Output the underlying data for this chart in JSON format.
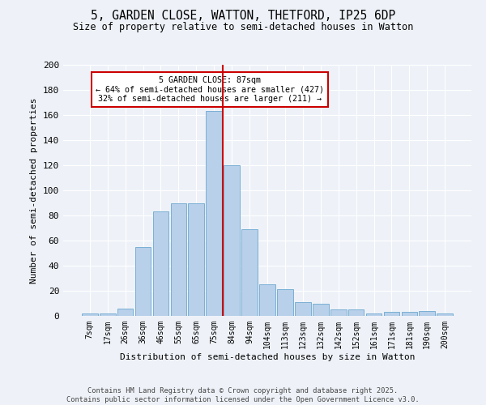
{
  "title": "5, GARDEN CLOSE, WATTON, THETFORD, IP25 6DP",
  "subtitle": "Size of property relative to semi-detached houses in Watton",
  "xlabel": "Distribution of semi-detached houses by size in Watton",
  "ylabel": "Number of semi-detached properties",
  "categories": [
    "7sqm",
    "17sqm",
    "26sqm",
    "36sqm",
    "46sqm",
    "55sqm",
    "65sqm",
    "75sqm",
    "84sqm",
    "94sqm",
    "104sqm",
    "113sqm",
    "123sqm",
    "132sqm",
    "142sqm",
    "152sqm",
    "161sqm",
    "171sqm",
    "181sqm",
    "190sqm",
    "200sqm"
  ],
  "values": [
    2,
    2,
    6,
    55,
    83,
    90,
    90,
    163,
    120,
    69,
    25,
    21,
    11,
    10,
    5,
    5,
    2,
    3,
    3,
    4,
    2
  ],
  "bar_color": "#b8d0ea",
  "bar_edge_color": "#7aafd4",
  "vline_x": 7.5,
  "vline_color": "#cc0000",
  "annotation_title": "5 GARDEN CLOSE: 87sqm",
  "annotation_line1": "← 64% of semi-detached houses are smaller (427)",
  "annotation_line2": "32% of semi-detached houses are larger (211) →",
  "annotation_box_color": "#cc0000",
  "ylim": [
    0,
    200
  ],
  "yticks": [
    0,
    20,
    40,
    60,
    80,
    100,
    120,
    140,
    160,
    180,
    200
  ],
  "footer1": "Contains HM Land Registry data © Crown copyright and database right 2025.",
  "footer2": "Contains public sector information licensed under the Open Government Licence v3.0.",
  "bg_color": "#eef2f8",
  "plot_bg_color": "#eef2f8"
}
